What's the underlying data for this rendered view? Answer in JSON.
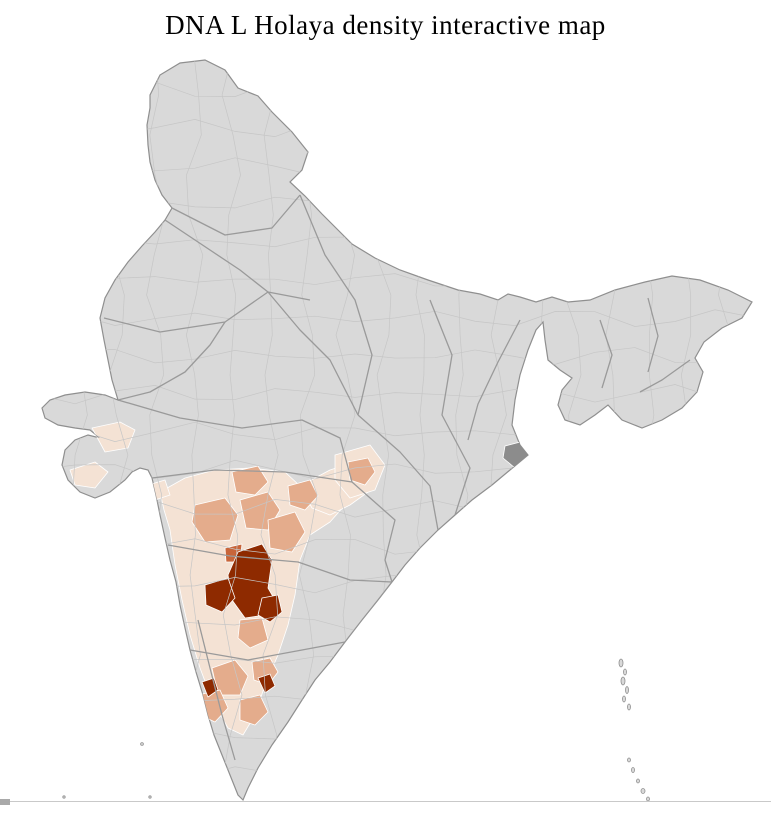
{
  "page": {
    "title": "DNA L Holaya density interactive map"
  },
  "map": {
    "region": "India",
    "type": "choropleth-district-map",
    "colors": {
      "background": "#ffffff",
      "land": "#d9d9d9",
      "outline": "#8f8f8f",
      "state_border": "#9a9a9a",
      "district_border": "#c6c6c6",
      "highlight_gray": "#8c8c8c",
      "divider": "#c9c9c9"
    },
    "scale": [
      {
        "id": "l1",
        "color": "#f4e2d4"
      },
      {
        "id": "l2",
        "color": "#e4ac8c"
      },
      {
        "id": "l3",
        "color": "#c8653a"
      },
      {
        "id": "l4",
        "color": "#8e2a00"
      }
    ]
  }
}
